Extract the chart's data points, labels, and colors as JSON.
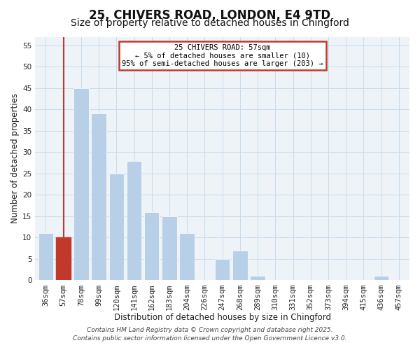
{
  "title": "25, CHIVERS ROAD, LONDON, E4 9TD",
  "subtitle": "Size of property relative to detached houses in Chingford",
  "xlabel": "Distribution of detached houses by size in Chingford",
  "ylabel": "Number of detached properties",
  "categories": [
    "36sqm",
    "57sqm",
    "78sqm",
    "99sqm",
    "120sqm",
    "141sqm",
    "162sqm",
    "183sqm",
    "204sqm",
    "226sqm",
    "247sqm",
    "268sqm",
    "289sqm",
    "310sqm",
    "331sqm",
    "352sqm",
    "373sqm",
    "394sqm",
    "415sqm",
    "436sqm",
    "457sqm"
  ],
  "values": [
    11,
    10,
    45,
    39,
    25,
    28,
    16,
    15,
    11,
    0,
    5,
    7,
    1,
    0,
    0,
    0,
    0,
    0,
    0,
    1,
    0
  ],
  "bar_color": "#b8cfe8",
  "highlight_bar_color": "#c0392b",
  "highlight_index": 1,
  "ylim": [
    0,
    57
  ],
  "yticks": [
    0,
    5,
    10,
    15,
    20,
    25,
    30,
    35,
    40,
    45,
    50,
    55
  ],
  "grid_color": "#c8dced",
  "background_color": "#ffffff",
  "plot_bg_color": "#eef3f8",
  "annotation_box_text": "25 CHIVERS ROAD: 57sqm\n← 5% of detached houses are smaller (10)\n95% of semi-detached houses are larger (203) →",
  "annotation_box_color": "#c0392b",
  "footer_line1": "Contains HM Land Registry data © Crown copyright and database right 2025.",
  "footer_line2": "Contains public sector information licensed under the Open Government Licence v3.0.",
  "title_fontsize": 12,
  "subtitle_fontsize": 10,
  "axis_label_fontsize": 8.5,
  "tick_fontsize": 7.5,
  "footer_fontsize": 6.5
}
